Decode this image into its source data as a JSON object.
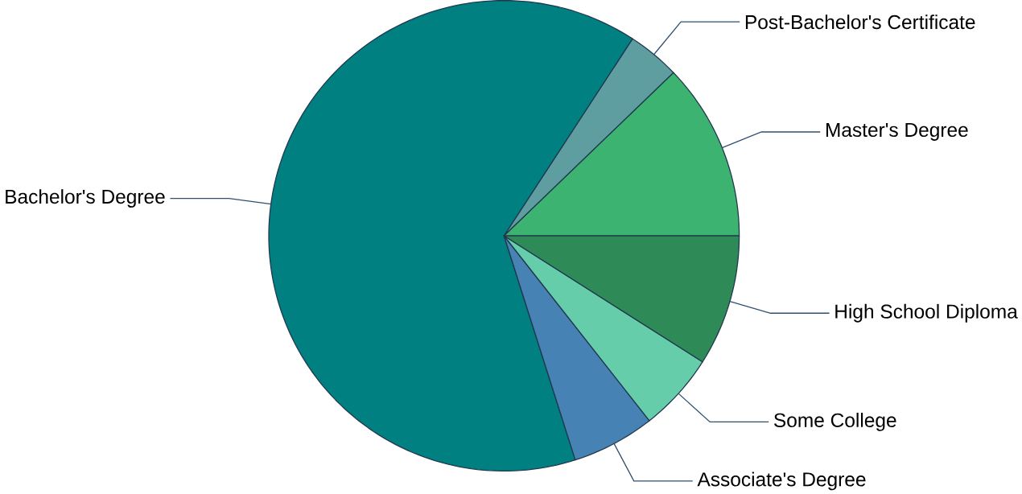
{
  "chart_data": {
    "type": "pie",
    "categories": [
      "Master's Degree",
      "Post-Bachelor's Certificate",
      "Bachelor's Degree",
      "Associate's Degree",
      "Some College",
      "High School Diploma"
    ],
    "values": [
      12.2,
      3.6,
      64.1,
      5.7,
      5.4,
      9.0
    ],
    "colors": [
      "#3cb371",
      "#5f9ea0",
      "#008080",
      "#4682b4",
      "#66cdaa",
      "#2e8b57"
    ]
  }
}
